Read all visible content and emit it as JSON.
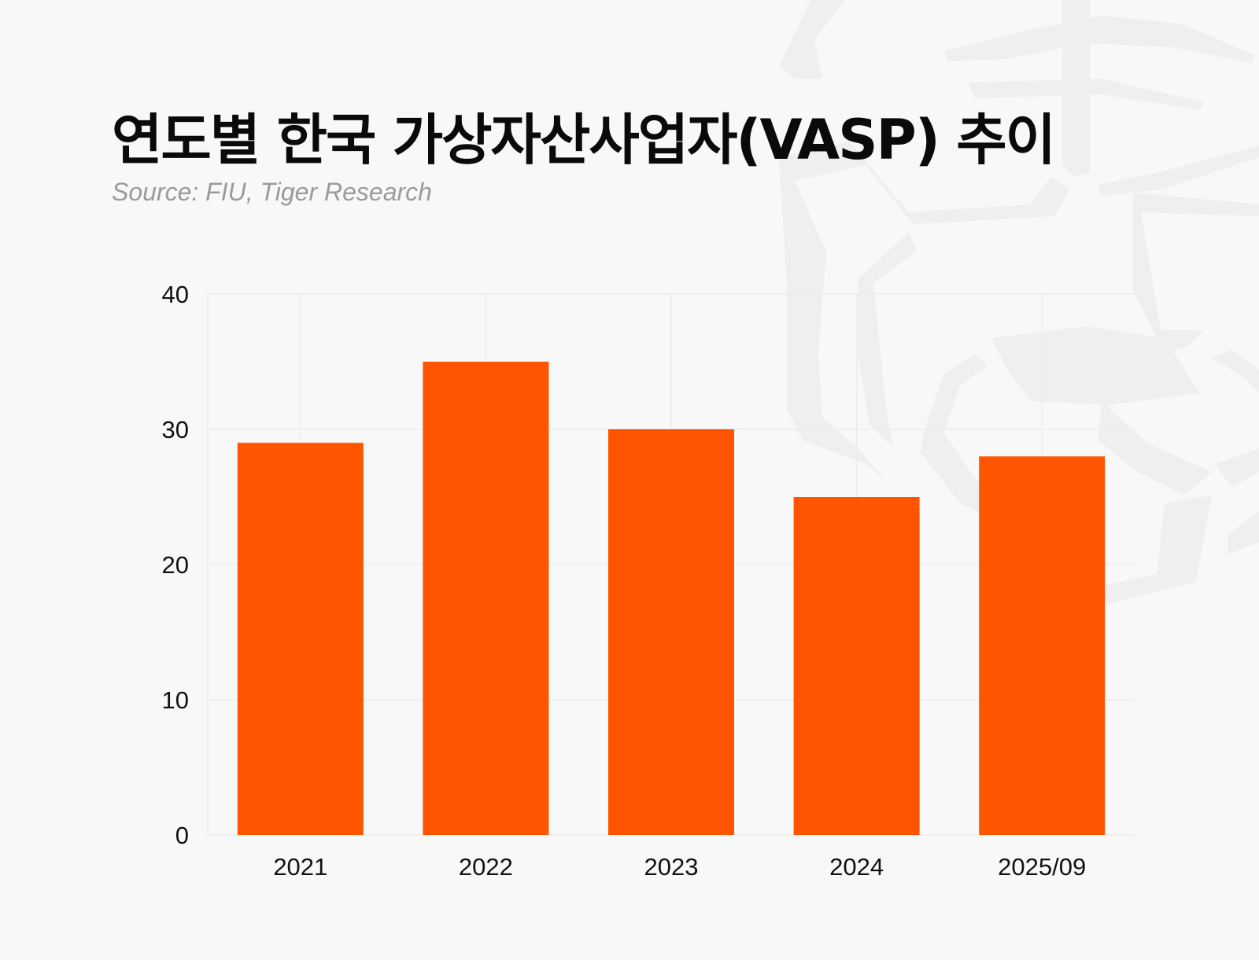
{
  "header": {
    "title": "연도별 한국 가상자산사업자(VASP) 추이",
    "subtitle": "Source: FIU, Tiger Research"
  },
  "colors": {
    "bar": "#ff5500",
    "grid": "#ececec",
    "background": "#f8f8f8",
    "watermark": "#efefef"
  },
  "chart_data": {
    "type": "bar",
    "title": "연도별 한국 가상자산사업자(VASP) 추이",
    "subtitle": "Source: FIU, Tiger Research",
    "categories": [
      "2021",
      "2022",
      "2023",
      "2024",
      "2025/09"
    ],
    "values": [
      29,
      35,
      30,
      25,
      28
    ],
    "xlabel": "",
    "ylabel": "",
    "ylim": [
      0,
      40
    ],
    "yticks": [
      "0",
      "10",
      "20",
      "30",
      "40"
    ],
    "grid": true,
    "legend": "none"
  }
}
